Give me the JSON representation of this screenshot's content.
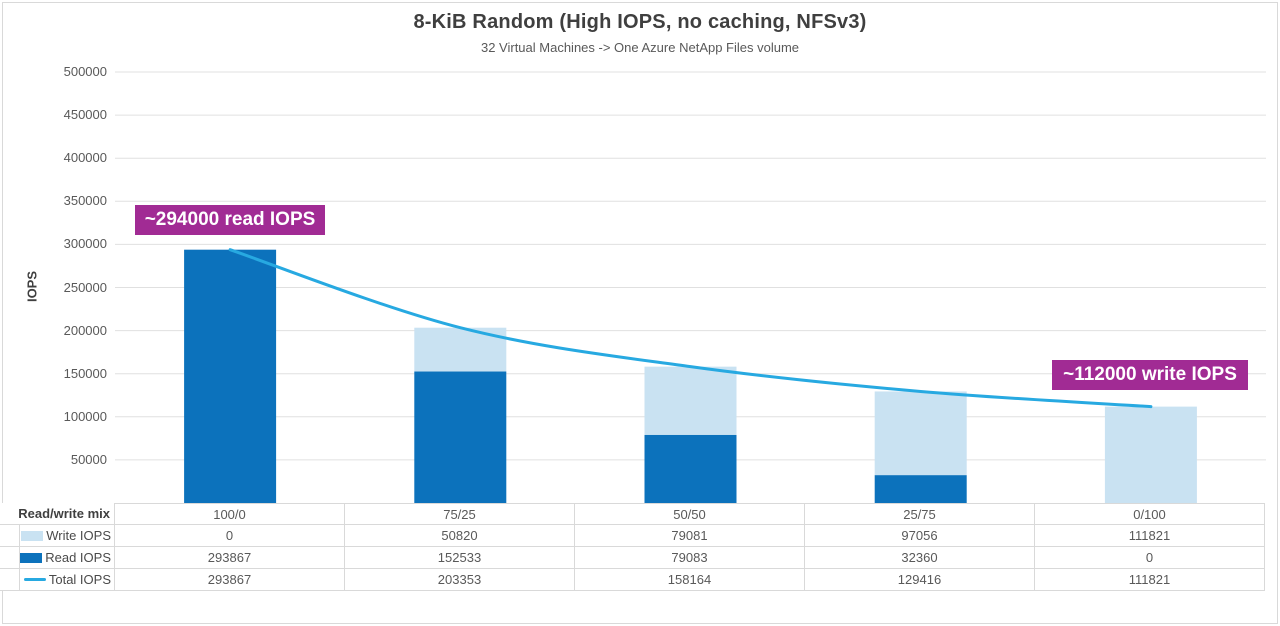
{
  "chart_data": {
    "type": "bar",
    "stacked": true,
    "title": "8-KiB Random (High IOPS, no caching, NFSv3)",
    "subtitle": "32 Virtual Machines -> One Azure NetApp Files volume",
    "xlabel": "Read/write mix",
    "ylabel": "IOPS",
    "categories": [
      "100/0",
      "75/25",
      "50/50",
      "25/75",
      "0/100"
    ],
    "series": [
      {
        "name": "Write IOPS",
        "type": "bar",
        "swatch": "rect",
        "color": "#c9e2f2",
        "values": [
          0,
          50820,
          79081,
          97056,
          111821
        ]
      },
      {
        "name": "Read IOPS",
        "type": "bar",
        "swatch": "rect",
        "color": "#0c72bc",
        "values": [
          293867,
          152533,
          79083,
          32360,
          0
        ]
      },
      {
        "name": "Total IOPS",
        "type": "line",
        "swatch": "line",
        "color": "#27a9e1",
        "values": [
          293867,
          203353,
          158164,
          129416,
          111821
        ]
      }
    ],
    "stack_order": [
      "Read IOPS",
      "Write IOPS"
    ],
    "ylim": [
      0,
      500000
    ],
    "yticks": [
      50000,
      100000,
      150000,
      200000,
      250000,
      300000,
      350000,
      400000,
      450000,
      500000
    ],
    "grid": true,
    "grid_color": "#e0e0e0",
    "legend_position": "data-table-left",
    "annotations": [
      {
        "text": "~294000 read IOPS",
        "color": "#a12b94",
        "anchor": "100/0"
      },
      {
        "text": "~112000 write IOPS",
        "color": "#a12b94",
        "anchor": "0/100"
      }
    ]
  }
}
